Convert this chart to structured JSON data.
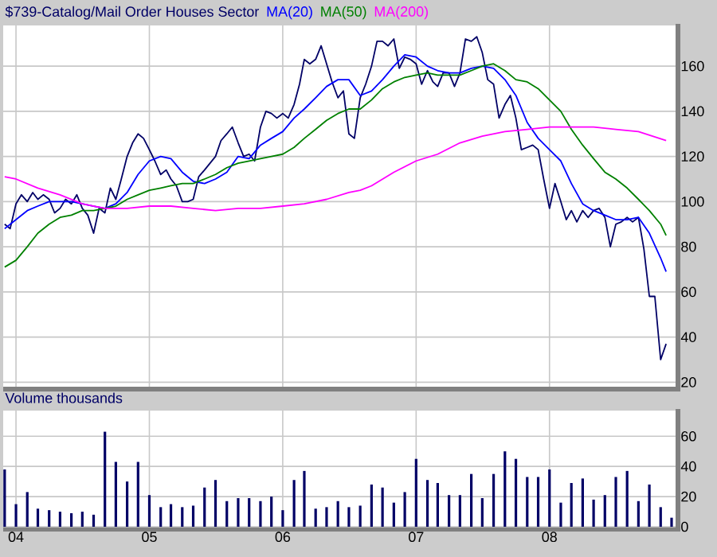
{
  "chart_data": [
    {
      "type": "line",
      "title": "$739-Catalog/Mail Order Houses Sector",
      "legend": "top left",
      "grid": true,
      "tick_labels": "y",
      "xlim": [
        "2003-11-27",
        "2008-12-12"
      ],
      "ylim": [
        18,
        178
      ],
      "xticks": [
        {
          "value": "2004-01-01",
          "label": null
        },
        {
          "value": "2005-01-01",
          "label": null
        },
        {
          "value": "2006-01-01",
          "label": null
        },
        {
          "value": "2007-01-01",
          "label": null
        },
        {
          "value": "2008-01-01",
          "label": null
        }
      ],
      "yticks": [
        20,
        40,
        60,
        80,
        100,
        120,
        140,
        160
      ],
      "series": [
        {
          "color": "#000066",
          "x": [
            "2003-12-01",
            "2003-12-16",
            "2004-01-01",
            "2004-01-16",
            "2004-02-01",
            "2004-02-16",
            "2004-03-01",
            "2004-03-16",
            "2004-04-01",
            "2004-04-16",
            "2004-05-01",
            "2004-05-16",
            "2004-06-01",
            "2004-06-16",
            "2004-07-01",
            "2004-07-16",
            "2004-08-01",
            "2004-08-16",
            "2004-09-01",
            "2004-09-16",
            "2004-10-01",
            "2004-10-16",
            "2004-11-01",
            "2004-11-16",
            "2004-12-01",
            "2004-12-16",
            "2005-01-01",
            "2005-01-16",
            "2005-02-01",
            "2005-02-16",
            "2005-03-01",
            "2005-03-16",
            "2005-04-01",
            "2005-04-16",
            "2005-05-01",
            "2005-05-16",
            "2005-06-01",
            "2005-06-16",
            "2005-07-01",
            "2005-07-16",
            "2005-08-01",
            "2005-08-16",
            "2005-09-01",
            "2005-09-16",
            "2005-10-01",
            "2005-10-16",
            "2005-11-01",
            "2005-11-16",
            "2005-12-01",
            "2005-12-16",
            "2006-01-01",
            "2006-01-16",
            "2006-02-01",
            "2006-02-16",
            "2006-03-01",
            "2006-03-16",
            "2006-04-01",
            "2006-04-16",
            "2006-05-01",
            "2006-05-16",
            "2006-06-01",
            "2006-06-16",
            "2006-07-01",
            "2006-07-16",
            "2006-08-01",
            "2006-08-16",
            "2006-09-01",
            "2006-09-16",
            "2006-10-01",
            "2006-10-16",
            "2006-11-01",
            "2006-11-16",
            "2006-12-01",
            "2006-12-16",
            "2007-01-01",
            "2007-01-16",
            "2007-02-01",
            "2007-02-16",
            "2007-03-01",
            "2007-03-16",
            "2007-04-01",
            "2007-04-16",
            "2007-05-01",
            "2007-05-16",
            "2007-06-01",
            "2007-06-16",
            "2007-07-01",
            "2007-07-16",
            "2007-08-01",
            "2007-08-16",
            "2007-09-01",
            "2007-09-16",
            "2007-10-01",
            "2007-10-16",
            "2007-11-01",
            "2007-11-16",
            "2007-12-01",
            "2007-12-16",
            "2008-01-01",
            "2008-01-16",
            "2008-02-01",
            "2008-02-16",
            "2008-03-01",
            "2008-03-16",
            "2008-04-01",
            "2008-04-16",
            "2008-05-01",
            "2008-05-16",
            "2008-06-01",
            "2008-06-16",
            "2008-07-01",
            "2008-07-16",
            "2008-08-01",
            "2008-08-16",
            "2008-09-01",
            "2008-09-16",
            "2008-10-01",
            "2008-10-16",
            "2008-11-01",
            "2008-11-16"
          ],
          "values": [
            90,
            88,
            99,
            103,
            100,
            104,
            101,
            103,
            101,
            95,
            97,
            101,
            99,
            103,
            97,
            94,
            86,
            97,
            95,
            106,
            101,
            110,
            120,
            126,
            130,
            128,
            123,
            118,
            112,
            114,
            110,
            107,
            100,
            100,
            101,
            111,
            114,
            117,
            120,
            127,
            130,
            133,
            126,
            120,
            121,
            118,
            133,
            140,
            139,
            137,
            139,
            137,
            143,
            152,
            163,
            161,
            163,
            169,
            161,
            153,
            146,
            149,
            130,
            128,
            146,
            152,
            160,
            171,
            171,
            169,
            172,
            159,
            164,
            163,
            161,
            152,
            158,
            153,
            151,
            157,
            157,
            151,
            157,
            172,
            171,
            173,
            166,
            154,
            152,
            137,
            143,
            147,
            137,
            123,
            124,
            125,
            123,
            110,
            97,
            108,
            100,
            92,
            96,
            91,
            96,
            93,
            96,
            97,
            93,
            80,
            90,
            91,
            93,
            91,
            93,
            79,
            58,
            58,
            30,
            37
          ]
        },
        {
          "name": "MA(20)",
          "color": "#0000ff",
          "x": [
            "2003-12-01",
            "2004-01-01",
            "2004-02-01",
            "2004-03-01",
            "2004-04-01",
            "2004-05-01",
            "2004-06-01",
            "2004-07-01",
            "2004-08-01",
            "2004-09-01",
            "2004-10-01",
            "2004-11-01",
            "2004-12-01",
            "2005-01-01",
            "2005-02-01",
            "2005-03-01",
            "2005-04-01",
            "2005-05-01",
            "2005-06-01",
            "2005-07-01",
            "2005-08-01",
            "2005-09-01",
            "2005-10-01",
            "2005-11-01",
            "2005-12-01",
            "2006-01-01",
            "2006-02-01",
            "2006-03-01",
            "2006-04-01",
            "2006-05-01",
            "2006-06-01",
            "2006-07-01",
            "2006-08-01",
            "2006-09-01",
            "2006-10-01",
            "2006-11-01",
            "2006-12-01",
            "2007-01-01",
            "2007-02-01",
            "2007-03-01",
            "2007-04-01",
            "2007-05-01",
            "2007-06-01",
            "2007-07-01",
            "2007-08-01",
            "2007-09-01",
            "2007-10-01",
            "2007-11-01",
            "2007-12-01",
            "2008-01-01",
            "2008-02-01",
            "2008-03-01",
            "2008-04-01",
            "2008-05-01",
            "2008-06-01",
            "2008-07-01",
            "2008-08-01",
            "2008-09-01",
            "2008-10-01",
            "2008-11-01",
            "2008-11-16"
          ],
          "values": [
            88,
            92,
            96,
            98,
            100,
            100,
            100,
            99,
            98,
            97,
            99,
            104,
            112,
            118,
            120,
            119,
            113,
            109,
            108,
            110,
            113,
            120,
            119,
            125,
            128,
            131,
            137,
            141,
            146,
            151,
            154,
            154,
            147,
            149,
            154,
            160,
            165,
            164,
            160,
            158,
            157,
            157,
            159,
            160,
            159,
            154,
            147,
            135,
            128,
            123,
            118,
            108,
            99,
            96,
            94,
            92,
            92,
            93,
            86,
            75,
            69
          ]
        },
        {
          "name": "MA(50)",
          "color": "#008000",
          "x": [
            "2003-12-01",
            "2004-01-01",
            "2004-02-01",
            "2004-03-01",
            "2004-04-01",
            "2004-05-01",
            "2004-06-01",
            "2004-07-01",
            "2004-08-01",
            "2004-09-01",
            "2004-10-01",
            "2004-11-01",
            "2004-12-01",
            "2005-01-01",
            "2005-02-01",
            "2005-03-01",
            "2005-04-01",
            "2005-05-01",
            "2005-06-01",
            "2005-07-01",
            "2005-08-01",
            "2005-09-01",
            "2005-10-01",
            "2005-11-01",
            "2005-12-01",
            "2006-01-01",
            "2006-02-01",
            "2006-03-01",
            "2006-04-01",
            "2006-05-01",
            "2006-06-01",
            "2006-07-01",
            "2006-08-01",
            "2006-09-01",
            "2006-10-01",
            "2006-11-01",
            "2006-12-01",
            "2007-01-01",
            "2007-02-01",
            "2007-03-01",
            "2007-04-01",
            "2007-05-01",
            "2007-06-01",
            "2007-07-01",
            "2007-08-01",
            "2007-09-01",
            "2007-10-01",
            "2007-11-01",
            "2007-12-01",
            "2008-01-01",
            "2008-02-01",
            "2008-03-01",
            "2008-04-01",
            "2008-05-01",
            "2008-06-01",
            "2008-07-01",
            "2008-08-01",
            "2008-09-01",
            "2008-10-01",
            "2008-11-01",
            "2008-11-16"
          ],
          "values": [
            71,
            74,
            80,
            86,
            90,
            93,
            94,
            96,
            96,
            97,
            98,
            101,
            103,
            105,
            106,
            107,
            108,
            108,
            110,
            112,
            115,
            117,
            118,
            119,
            120,
            121,
            124,
            128,
            132,
            136,
            139,
            141,
            141,
            145,
            150,
            153,
            155,
            156,
            157,
            156,
            156,
            156,
            158,
            160,
            161,
            158,
            154,
            153,
            150,
            145,
            140,
            132,
            125,
            119,
            113,
            110,
            106,
            101,
            96,
            90,
            85
          ]
        },
        {
          "name": "MA(200)",
          "color": "#ff00ff",
          "x": [
            "2003-12-01",
            "2004-01-01",
            "2004-03-01",
            "2004-05-01",
            "2004-07-01",
            "2004-09-01",
            "2004-11-01",
            "2005-01-01",
            "2005-03-01",
            "2005-05-01",
            "2005-07-01",
            "2005-09-01",
            "2005-11-01",
            "2006-01-01",
            "2006-03-01",
            "2006-05-01",
            "2006-07-01",
            "2006-08-01",
            "2006-09-01",
            "2006-11-01",
            "2007-01-01",
            "2007-03-01",
            "2007-05-01",
            "2007-07-01",
            "2007-09-01",
            "2007-11-01",
            "2008-01-01",
            "2008-03-01",
            "2008-05-01",
            "2008-07-01",
            "2008-09-01",
            "2008-11-16"
          ],
          "values": [
            111,
            110,
            106,
            103,
            99,
            97,
            97,
            98,
            98,
            97,
            96,
            97,
            97,
            98,
            99,
            101,
            104,
            105,
            107,
            113,
            118,
            121,
            126,
            129,
            131,
            132,
            133,
            133,
            133,
            132,
            131,
            127
          ]
        }
      ]
    },
    {
      "type": "bar",
      "title": "Volume thousands",
      "grid": true,
      "xlim": [
        "2003-11-27",
        "2008-12-12"
      ],
      "ylim": [
        0,
        77
      ],
      "xticks": [
        {
          "value": "2004-01-01",
          "label": "04"
        },
        {
          "value": "2005-01-01",
          "label": "05"
        },
        {
          "value": "2006-01-01",
          "label": "06"
        },
        {
          "value": "2007-01-01",
          "label": "07"
        },
        {
          "value": "2008-01-01",
          "label": "08"
        }
      ],
      "yticks": [
        0,
        20,
        40,
        60
      ],
      "color": "#000066",
      "x": [
        "2003-12",
        "2004-01",
        "2004-02",
        "2004-03",
        "2004-04",
        "2004-05",
        "2004-06",
        "2004-07",
        "2004-08",
        "2004-09",
        "2004-10",
        "2004-11",
        "2004-12",
        "2005-01",
        "2005-02",
        "2005-03",
        "2005-04",
        "2005-05",
        "2005-06",
        "2005-07",
        "2005-08",
        "2005-09",
        "2005-10",
        "2005-11",
        "2005-12",
        "2006-01",
        "2006-02",
        "2006-03",
        "2006-04",
        "2006-05",
        "2006-06",
        "2006-07",
        "2006-08",
        "2006-09",
        "2006-10",
        "2006-11",
        "2006-12",
        "2007-01",
        "2007-02",
        "2007-03",
        "2007-04",
        "2007-05",
        "2007-06",
        "2007-07",
        "2007-08",
        "2007-09",
        "2007-10",
        "2007-11",
        "2007-12",
        "2008-01",
        "2008-02",
        "2008-03",
        "2008-04",
        "2008-05",
        "2008-06",
        "2008-07",
        "2008-08",
        "2008-09",
        "2008-10",
        "2008-11",
        "2008-12"
      ],
      "values": [
        38,
        15,
        23,
        12,
        11,
        10,
        9,
        10,
        8,
        63,
        43,
        30,
        43,
        21,
        13,
        15,
        13,
        14,
        26,
        31,
        17,
        19,
        19,
        17,
        20,
        11,
        31,
        37,
        12,
        13,
        17,
        13,
        14,
        28,
        26,
        16,
        23,
        45,
        31,
        29,
        21,
        21,
        35,
        19,
        35,
        50,
        45,
        33,
        33,
        38,
        16,
        29,
        32,
        18,
        21,
        33,
        37,
        17,
        28,
        13,
        6
      ]
    }
  ]
}
